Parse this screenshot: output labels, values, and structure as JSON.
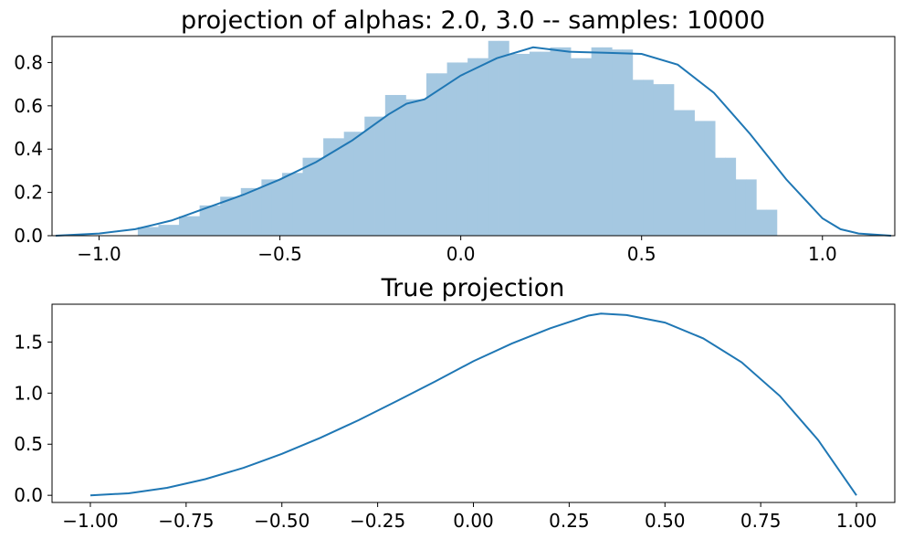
{
  "chart_data": [
    {
      "type": "bar",
      "title": "projection of alphas: 2.0, 3.0 -- samples: 10000",
      "xlabel": "",
      "ylabel": "",
      "xlim": [
        -1.13,
        1.2
      ],
      "ylim": [
        0,
        0.92
      ],
      "xticks": [
        -1.0,
        -0.5,
        0.0,
        0.5,
        1.0
      ],
      "xtick_labels": [
        "−1.0",
        "−0.5",
        "0.0",
        "0.5",
        "1.0"
      ],
      "yticks": [
        0.0,
        0.2,
        0.4,
        0.6,
        0.8
      ],
      "ytick_labels": [
        "0.0",
        "0.2",
        "0.4",
        "0.6",
        "0.8"
      ],
      "grid": false,
      "bar_color": "#a5c8e1",
      "line_color": "#1f77b4",
      "bins": {
        "edges": [
          -0.893,
          -0.8645,
          -0.836,
          -0.8075,
          -0.779,
          -0.7505,
          -0.722,
          -0.6935,
          -0.665,
          -0.6365,
          -0.608,
          -0.5795,
          -0.551,
          -0.5225,
          -0.494,
          -0.4655,
          -0.437,
          -0.4085,
          -0.38,
          -0.3515,
          -0.323,
          -0.2945,
          -0.266,
          -0.2375,
          -0.209,
          -0.1805,
          -0.152,
          -0.1235,
          -0.095,
          -0.0665,
          -0.038,
          -0.0095,
          0.019,
          0.0475,
          0.076,
          0.1045,
          0.133,
          0.1615,
          0.19,
          0.2185,
          0.247,
          0.2755,
          0.304,
          0.3325,
          0.361,
          0.3895,
          0.418,
          0.4465,
          0.475,
          0.5035,
          0.532,
          0.5605,
          0.589,
          0.6175,
          0.646,
          0.6745,
          0.703,
          0.7315,
          0.76,
          0.7885,
          0.817,
          0.8455,
          0.874,
          0.9025,
          0.931,
          0.9595,
          0.988
        ],
        "heights": [
          0.04,
          0.04,
          0.05,
          0.05,
          0.09,
          0.09,
          0.14,
          0.14,
          0.18,
          0.18,
          0.22,
          0.22,
          0.26,
          0.26,
          0.29,
          0.29,
          0.36,
          0.36,
          0.45,
          0.45,
          0.48,
          0.48,
          0.55,
          0.55,
          0.65,
          0.65,
          0.63,
          0.63,
          0.75,
          0.75,
          0.8,
          0.8,
          0.82,
          0.82,
          0.9,
          0.9,
          0.84,
          0.84,
          0.85,
          0.85,
          0.87,
          0.87,
          0.82,
          0.82,
          0.87,
          0.87,
          0.86,
          0.86,
          0.72,
          0.72,
          0.7,
          0.7,
          0.58,
          0.58,
          0.53,
          0.53,
          0.36,
          0.36,
          0.26,
          0.26,
          0.12,
          0.12,
          0.0,
          0.0,
          0.0,
          0.0
        ]
      },
      "kde": {
        "x": [
          -1.12,
          -1.0,
          -0.9,
          -0.85,
          -0.8,
          -0.7,
          -0.6,
          -0.5,
          -0.4,
          -0.3,
          -0.2,
          -0.15,
          -0.1,
          0.0,
          0.1,
          0.2,
          0.3,
          0.4,
          0.5,
          0.6,
          0.7,
          0.8,
          0.9,
          1.0,
          1.05,
          1.1,
          1.19
        ],
        "y": [
          0.0,
          0.01,
          0.03,
          0.05,
          0.07,
          0.13,
          0.19,
          0.26,
          0.34,
          0.44,
          0.56,
          0.61,
          0.63,
          0.74,
          0.82,
          0.87,
          0.85,
          0.845,
          0.84,
          0.79,
          0.66,
          0.47,
          0.26,
          0.08,
          0.03,
          0.01,
          0.0
        ]
      }
    },
    {
      "type": "line",
      "title": "True projection",
      "xlabel": "",
      "ylabel": "",
      "xlim": [
        -1.1,
        1.1
      ],
      "ylim": [
        -0.07,
        1.87
      ],
      "xticks": [
        -1.0,
        -0.75,
        -0.5,
        -0.25,
        0.0,
        0.25,
        0.5,
        0.75,
        1.0
      ],
      "xtick_labels": [
        "−1.00",
        "−0.75",
        "−0.50",
        "−0.25",
        "0.00",
        "0.25",
        "0.50",
        "0.75",
        "1.00"
      ],
      "yticks": [
        0.0,
        0.5,
        1.0,
        1.5
      ],
      "ytick_labels": [
        "0.0",
        "0.5",
        "1.0",
        "1.5"
      ],
      "grid": false,
      "line_color": "#1f77b4",
      "x": [
        -1.0,
        -0.9,
        -0.8,
        -0.7,
        -0.6,
        -0.5,
        -0.4,
        -0.3,
        -0.2,
        -0.1,
        0.0,
        0.1,
        0.2,
        0.3,
        0.333,
        0.4,
        0.5,
        0.6,
        0.7,
        0.8,
        0.9,
        1.0
      ],
      "y": [
        0.0,
        0.019,
        0.073,
        0.158,
        0.269,
        0.406,
        0.562,
        0.735,
        0.922,
        1.114,
        1.312,
        1.485,
        1.634,
        1.758,
        1.778,
        1.764,
        1.69,
        1.536,
        1.302,
        0.972,
        0.541,
        0.0
      ]
    }
  ]
}
